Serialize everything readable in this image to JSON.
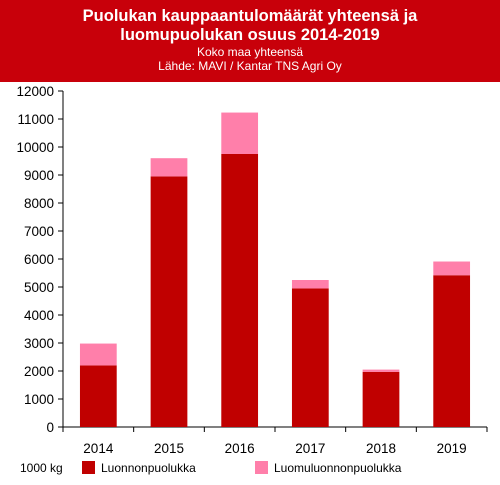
{
  "chart_data": {
    "type": "bar",
    "stacked": true,
    "title_line1": "Puolukan kauppaantulomäärät yhteensä ja",
    "title_line2": "luomupuolukan osuus 2014-2019",
    "subtitle_line1": "Koko maa yhteensä",
    "subtitle_line2": "Lähde: MAVI / Kantar TNS Agri Oy",
    "unit_label": "1000 kg",
    "categories": [
      "2014",
      "2015",
      "2016",
      "2017",
      "2018",
      "2019"
    ],
    "series": [
      {
        "name": "Luonnonpuolukka",
        "color": "#c00000",
        "values": [
          2200,
          8950,
          9750,
          4950,
          1970,
          5420
        ]
      },
      {
        "name": "Luomuluonnonpuolukka",
        "color": "#ff7faa",
        "values": [
          780,
          650,
          1480,
          300,
          80,
          490
        ]
      }
    ],
    "ylim": [
      0,
      12000
    ],
    "yticks": [
      0,
      1000,
      2000,
      3000,
      4000,
      5000,
      6000,
      7000,
      8000,
      9000,
      10000,
      11000,
      12000
    ],
    "grid": false,
    "legend_position": "bottom"
  }
}
